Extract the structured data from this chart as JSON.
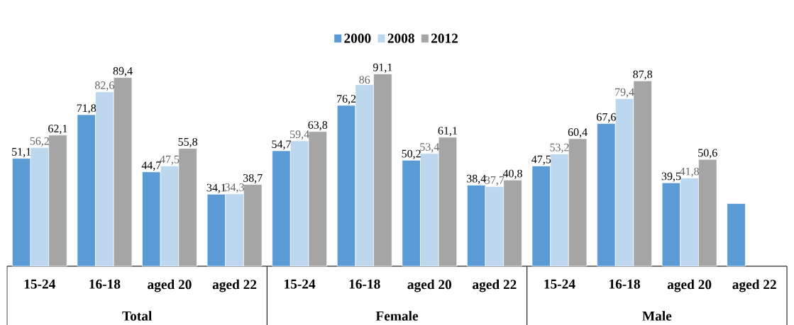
{
  "chart_data": {
    "type": "bar",
    "categories": [
      "15-24",
      "16-18",
      "aged 20",
      "aged 22",
      "15-24",
      "16-18",
      "aged 20",
      "aged 22",
      "15-24",
      "16-18",
      "aged 20",
      "aged 22"
    ],
    "annotations": [
      "Total",
      "Female",
      "Male"
    ],
    "series": [
      {
        "name": "2000",
        "color": "#5b9bd5",
        "values": [
          51.1,
          71.8,
          44.7,
          34.1,
          54.7,
          76.2,
          50.2,
          38.4,
          47.5,
          67.6,
          39.5,
          29.7
        ],
        "value_labels": [
          "51,1",
          "71,8",
          "44,7",
          "34,1",
          "54,7",
          "76,2",
          "50,2",
          "38,4",
          "47,5",
          "67,6",
          "39,5",
          null
        ]
      },
      {
        "name": "2008",
        "color": "#bdd7ee",
        "values": [
          56.2,
          82.6,
          47.5,
          34.3,
          59.4,
          86,
          53.4,
          37.7,
          53.2,
          79.4,
          41.8,
          null
        ],
        "value_labels": [
          "56,2",
          "82,6",
          "47,5",
          "34,3",
          "59,4",
          "86",
          "53,4",
          "37,7",
          "53,2",
          "79,4",
          "41,8",
          null
        ]
      },
      {
        "name": "2012",
        "color": "#a5a5a5",
        "values": [
          62.1,
          89.4,
          55.8,
          38.7,
          63.8,
          91.1,
          61.1,
          40.8,
          60.4,
          87.8,
          50.6,
          null
        ],
        "value_labels": [
          "62,1",
          "89,4",
          "55,8",
          "38,7",
          "63,8",
          "91,1",
          "61,1",
          "40,8",
          "60,4",
          "87,8",
          "50,6",
          null
        ]
      }
    ],
    "legend": "top"
  }
}
